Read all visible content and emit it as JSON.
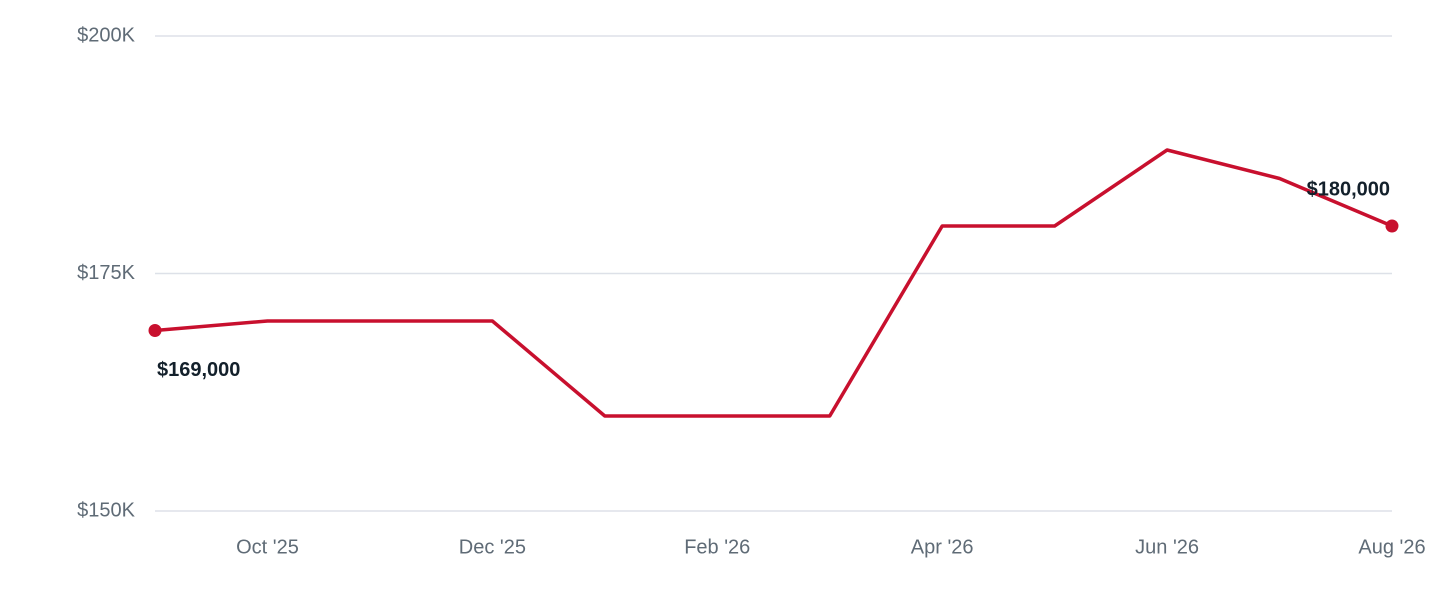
{
  "chart_data": {
    "type": "line",
    "categories": [
      null,
      "Oct '25",
      null,
      "Dec '25",
      null,
      "Feb '26",
      null,
      "Apr '26",
      null,
      "Jun '26",
      null,
      "Aug '26"
    ],
    "series": [
      {
        "color": "#c8102e",
        "values": [
          169000,
          170000,
          170000,
          170000,
          160000,
          160000,
          160000,
          180000,
          180000,
          188000,
          185000,
          180000
        ],
        "value_labels": [
          "$169,000",
          null,
          null,
          null,
          null,
          null,
          null,
          null,
          null,
          null,
          null,
          "$180,000"
        ]
      }
    ],
    "ylim": [
      150000,
      200000
    ],
    "yticks": [
      {
        "value": 150000,
        "label": "$150K"
      },
      {
        "value": 175000,
        "label": "$175K"
      },
      {
        "value": 200000,
        "label": "$200K"
      }
    ],
    "grid": true
  }
}
